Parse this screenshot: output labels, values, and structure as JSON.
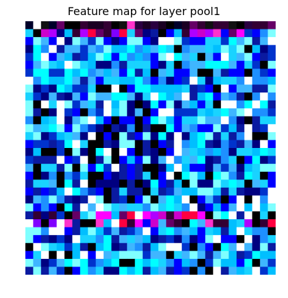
{
  "title": "Feature map for layer pool1",
  "image": {
    "subject": "feature-map-mosaic",
    "cols": 32,
    "rows": 32,
    "palette": [
      "#000000",
      "#0000ff",
      "#00ffff",
      "#ffffff",
      "#ff00ff",
      "#1e90ff",
      "#7fffff",
      "#000080",
      "#8000ff",
      "#ff0040"
    ]
  }
}
